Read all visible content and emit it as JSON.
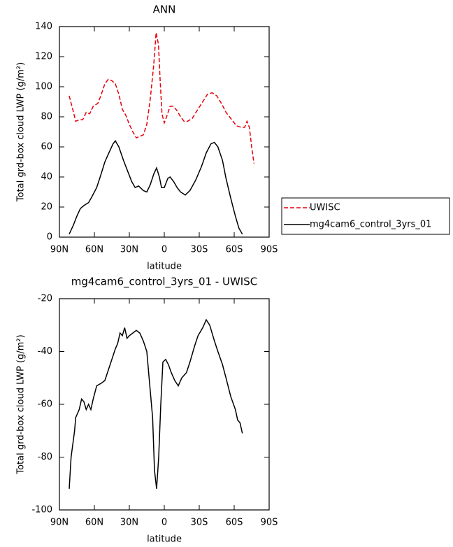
{
  "chart_data": [
    {
      "type": "line",
      "title": "ANN",
      "xlabel": "latitude",
      "ylabel": "Total grd-box cloud LWP (g/m²)",
      "xlim": [
        90,
        -90
      ],
      "xticks": [
        {
          "value": 90,
          "label": "90N"
        },
        {
          "value": 60,
          "label": "60N"
        },
        {
          "value": 30,
          "label": "30N"
        },
        0,
        {
          "value": -30,
          "label": "30S"
        },
        {
          "value": -60,
          "label": "60S"
        },
        {
          "value": -90,
          "label": "90S"
        }
      ],
      "ylim": [
        0,
        140
      ],
      "yticks": [
        0,
        20,
        40,
        60,
        80,
        100,
        120,
        140
      ],
      "grid": false,
      "legend": "right",
      "series": [
        {
          "name": "UWISC",
          "color": "#e8000b",
          "dash": true,
          "x": [
            81.6,
            78.6,
            76,
            73,
            70,
            67,
            64,
            61,
            57,
            54,
            51,
            48,
            45,
            42,
            39,
            36,
            33,
            30,
            27,
            24,
            21,
            18,
            15,
            12,
            9,
            7,
            5,
            3.6,
            2,
            0,
            -2,
            -5,
            -8,
            -11,
            -14,
            -17,
            -20,
            -24,
            -28,
            -33,
            -37,
            -41,
            -45,
            -49,
            -53,
            -58,
            -62,
            -66,
            -69,
            -71,
            -73,
            -75,
            -77
          ],
          "values": [
            94,
            85,
            77,
            78,
            78,
            83,
            82,
            87,
            89,
            95,
            102,
            105,
            104,
            102,
            95,
            85,
            81,
            75,
            70,
            66,
            67,
            68,
            75,
            92,
            115,
            136,
            128,
            105,
            82,
            76,
            80,
            87,
            87,
            84,
            80,
            77,
            77,
            79,
            84,
            90,
            95,
            96,
            94,
            89,
            83,
            78,
            74,
            73,
            73,
            77,
            73,
            60,
            49
          ]
        },
        {
          "name": "mg4cam6_control_3yrs_01",
          "color": "#000000",
          "dash": false,
          "x": [
            81.6,
            78,
            75,
            72,
            69,
            65,
            62,
            58,
            55,
            51,
            47,
            44,
            42,
            39,
            35,
            32,
            28,
            25,
            22,
            18,
            15,
            12,
            9,
            6.6,
            4.2,
            2.4,
            0,
            -3,
            -5,
            -8,
            -11,
            -14,
            -18,
            -22,
            -27,
            -32,
            -36,
            -40,
            -43,
            -46,
            -50,
            -53,
            -57,
            -61,
            -64,
            -67
          ],
          "values": [
            2,
            8,
            14,
            19,
            21,
            23,
            27,
            33,
            40,
            50,
            57,
            62,
            64,
            60,
            51,
            45,
            37,
            33,
            34,
            31,
            30,
            35,
            42,
            46,
            40,
            33,
            33,
            39,
            40,
            37,
            33,
            30,
            28,
            31,
            38,
            47,
            56,
            62,
            63,
            60,
            51,
            39,
            26,
            14,
            6,
            2
          ]
        }
      ]
    },
    {
      "type": "line",
      "title": "mg4cam6_control_3yrs_01 - UWISC",
      "xlabel": "latitude",
      "ylabel": "Total grd-box cloud LWP (g/m²)",
      "xlim": [
        90,
        -90
      ],
      "xticks": [
        {
          "value": 90,
          "label": "90N"
        },
        {
          "value": 60,
          "label": "60N"
        },
        {
          "value": 30,
          "label": "30N"
        },
        0,
        {
          "value": -30,
          "label": "30S"
        },
        {
          "value": -60,
          "label": "60S"
        },
        {
          "value": -90,
          "label": "90S"
        }
      ],
      "ylim": [
        -100,
        -20
      ],
      "yticks": [
        -100,
        -80,
        -60,
        -40,
        -20
      ],
      "grid": false,
      "series": [
        {
          "color": "#000000",
          "dash": false,
          "x": [
            81.6,
            80,
            77,
            76,
            73,
            71,
            69,
            67,
            65,
            63,
            61,
            58,
            54,
            51,
            48,
            45,
            42,
            40,
            38,
            36,
            34,
            32,
            30,
            27,
            24,
            21,
            18,
            15,
            13,
            10,
            8.4,
            6.6,
            4.8,
            3,
            1.2,
            -1.2,
            -3.6,
            -6,
            -9,
            -12,
            -15,
            -19,
            -22,
            -26,
            -29,
            -33,
            -36,
            -39,
            -43,
            -46,
            -50,
            -53,
            -57,
            -61,
            -63,
            -65,
            -67
          ],
          "values": [
            -92,
            -80,
            -70,
            -65,
            -62,
            -58,
            -59,
            -62,
            -60,
            -62,
            -58,
            -53,
            -52,
            -51,
            -47,
            -43,
            -39,
            -37,
            -33,
            -34,
            -31,
            -35,
            -34,
            -33,
            -32,
            -33,
            -36,
            -40,
            -50,
            -65,
            -85,
            -92,
            -80,
            -60,
            -44,
            -43,
            -45,
            -48,
            -51,
            -53,
            -50,
            -48,
            -44,
            -38,
            -34,
            -31,
            -28,
            -30,
            -36,
            -40,
            -45,
            -50,
            -57,
            -62,
            -66,
            -67,
            -71
          ]
        }
      ]
    }
  ]
}
